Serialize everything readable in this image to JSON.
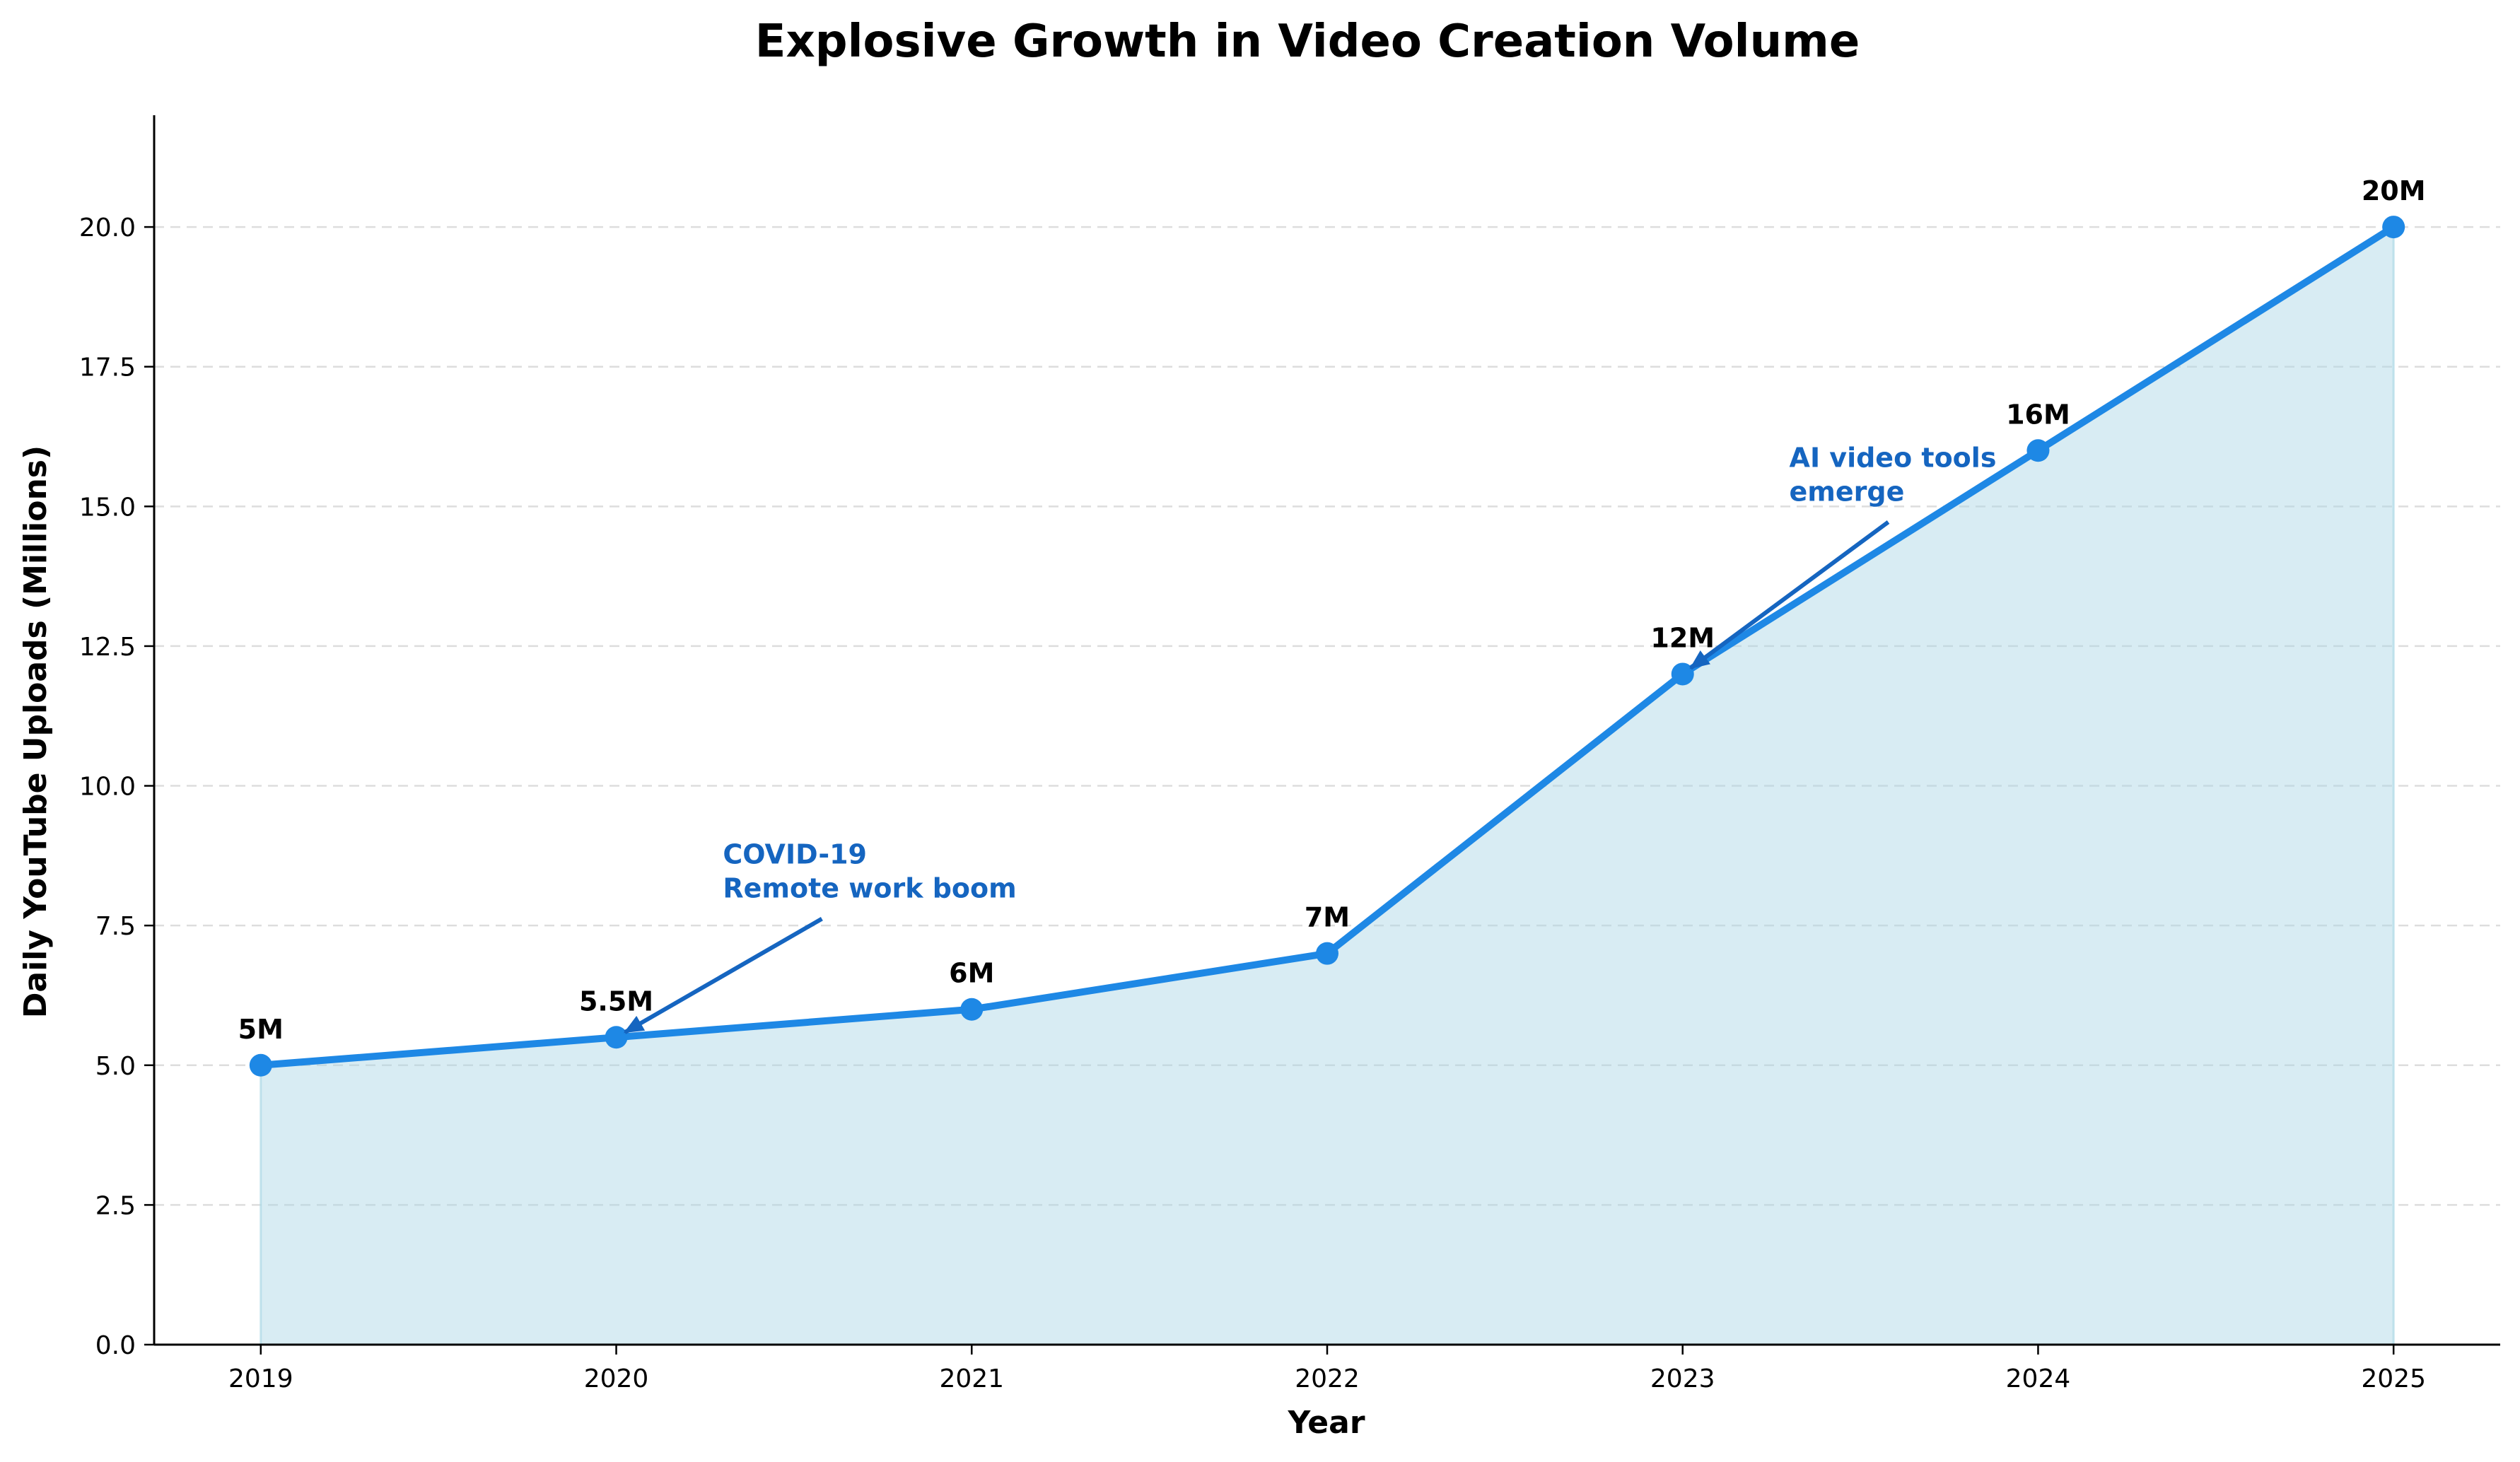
{
  "chart_data": {
    "type": "area",
    "title": "Explosive Growth in Video Creation Volume",
    "xlabel": "Year",
    "ylabel": "Daily YouTube Uploads (Millions)",
    "x": [
      "2019",
      "2020",
      "2021",
      "2022",
      "2023",
      "2024",
      "2025"
    ],
    "xlim": [
      2018.7,
      2025.3
    ],
    "ylim": [
      0,
      22
    ],
    "yticks": [
      0,
      2.5,
      5,
      7.5,
      10,
      12.5,
      15,
      17.5,
      20
    ],
    "ytick_labels": [
      "0.0",
      "2.5",
      "5.0",
      "7.5",
      "10.0",
      "12.5",
      "15.0",
      "17.5",
      "20.0"
    ],
    "grid": "horizontal dashed",
    "series": [
      {
        "name": "Daily YouTube Uploads",
        "values": [
          5,
          5.5,
          6,
          7,
          12,
          16,
          20
        ],
        "labels": [
          "5M",
          "5.5M",
          "6M",
          "7M",
          "12M",
          "16M",
          "20M"
        ]
      }
    ],
    "annotations": [
      {
        "lines": [
          "COVID-19",
          "Remote work boom"
        ],
        "point_x": 2020,
        "point_y": 5.5,
        "text_x": 2020.3,
        "text_y": 8.0
      },
      {
        "lines": [
          "AI video tools",
          "emerge"
        ],
        "point_x": 2023,
        "point_y": 12,
        "text_x": 2023.3,
        "text_y": 15.1
      }
    ],
    "colors": {
      "line": "#1E88E5",
      "fill": "#ADD8E6",
      "annotation": "#1565C0",
      "grid": "#DDDDDD",
      "axis": "#000000"
    }
  }
}
